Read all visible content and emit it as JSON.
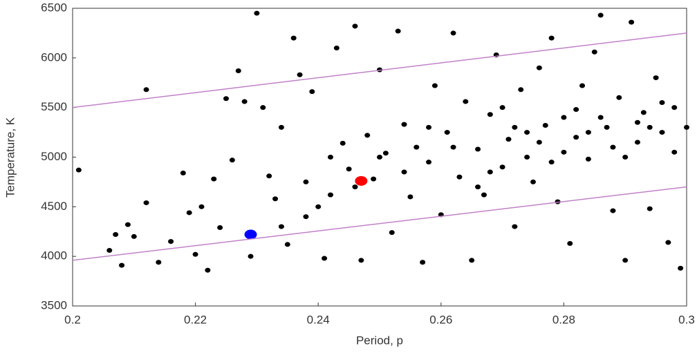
{
  "chart_data": {
    "type": "scatter",
    "xlabel": "Period, p",
    "ylabel": "Temperature, K",
    "xlim": [
      0.2,
      0.3
    ],
    "xticks": [
      0.2,
      0.22,
      0.24,
      0.26,
      0.28,
      0.3
    ],
    "ylim": [
      3500,
      6500
    ],
    "yticks": [
      3500,
      4000,
      4500,
      5000,
      5500,
      6000,
      6500
    ],
    "grid": false,
    "series": [
      {
        "type": "scatter",
        "color": "#000000",
        "x": [
          0.201,
          0.206,
          0.207,
          0.208,
          0.209,
          0.21,
          0.212,
          0.212,
          0.214,
          0.216,
          0.218,
          0.219,
          0.22,
          0.221,
          0.222,
          0.223,
          0.224,
          0.225,
          0.226,
          0.227,
          0.228,
          0.229,
          0.23,
          0.231,
          0.232,
          0.233,
          0.234,
          0.235,
          0.236,
          0.237,
          0.238,
          0.239,
          0.24,
          0.241,
          0.242,
          0.243,
          0.244,
          0.245,
          0.246,
          0.247,
          0.248,
          0.249,
          0.25,
          0.251,
          0.252,
          0.253,
          0.254,
          0.255,
          0.256,
          0.257,
          0.258,
          0.259,
          0.26,
          0.261,
          0.262,
          0.263,
          0.264,
          0.265,
          0.266,
          0.267,
          0.268,
          0.269,
          0.27,
          0.271,
          0.272,
          0.273,
          0.274,
          0.275,
          0.276,
          0.277,
          0.278,
          0.279,
          0.28,
          0.281,
          0.282,
          0.283,
          0.284,
          0.285,
          0.286,
          0.287,
          0.288,
          0.289,
          0.29,
          0.291,
          0.292,
          0.293,
          0.294,
          0.295,
          0.296,
          0.297,
          0.298,
          0.299,
          0.3,
          0.262,
          0.268,
          0.272,
          0.276,
          0.28,
          0.284,
          0.288,
          0.292,
          0.296,
          0.298,
          0.27,
          0.274,
          0.278,
          0.282,
          0.286,
          0.29,
          0.294,
          0.266,
          0.258,
          0.254,
          0.25,
          0.246,
          0.242,
          0.238,
          0.234
        ],
        "values": [
          4870,
          4060,
          4220,
          3910,
          4320,
          4200,
          5680,
          4540,
          3940,
          4150,
          4840,
          4440,
          4020,
          4500,
          3860,
          4780,
          4290,
          5590,
          4970,
          5870,
          5560,
          4000,
          6450,
          5500,
          4810,
          4580,
          5300,
          4120,
          6200,
          5830,
          4750,
          5660,
          4500,
          3980,
          4620,
          6100,
          5140,
          4880,
          6320,
          3960,
          5220,
          4780,
          5880,
          5040,
          4240,
          6270,
          5330,
          4600,
          5100,
          3940,
          4950,
          5720,
          4420,
          5250,
          6250,
          4800,
          5560,
          3960,
          5080,
          4620,
          5430,
          6030,
          4900,
          5180,
          4300,
          5680,
          5000,
          4750,
          5900,
          5320,
          6200,
          4550,
          5050,
          4130,
          5480,
          5720,
          4980,
          6060,
          6430,
          5300,
          4460,
          5600,
          3960,
          6360,
          5150,
          5450,
          4480,
          5800,
          5250,
          4140,
          5500,
          3880,
          5300,
          5100,
          4850,
          5300,
          5150,
          5400,
          5250,
          5100,
          5350,
          5550,
          5050,
          5500,
          5250,
          4950,
          5200,
          5400,
          5000,
          5300,
          4700,
          5300,
          4850,
          5000,
          4700,
          5000,
          4400,
          4300
        ]
      },
      {
        "type": "scatter",
        "color": "#ff0000",
        "x": [
          0.247
        ],
        "values": [
          4760
        ]
      },
      {
        "type": "scatter",
        "color": "#0000ff",
        "x": [
          0.229
        ],
        "values": [
          4220
        ]
      },
      {
        "type": "line",
        "color": "#c080c8",
        "x": [
          0.2,
          0.3
        ],
        "values": [
          5500,
          6250
        ]
      },
      {
        "type": "line",
        "color": "#c080c8",
        "x": [
          0.2,
          0.3
        ],
        "values": [
          3960,
          4700
        ]
      }
    ]
  }
}
